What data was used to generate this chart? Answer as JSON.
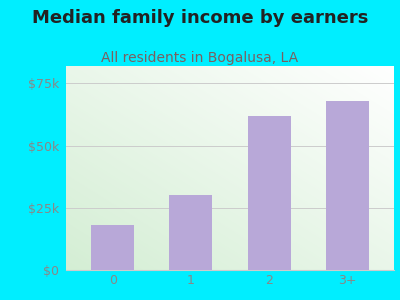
{
  "categories": [
    "0",
    "1",
    "2",
    "3+"
  ],
  "values": [
    18000,
    30000,
    62000,
    68000
  ],
  "bar_color": "#b8a8d8",
  "title": "Median family income by earners",
  "subtitle": "All residents in Bogalusa, LA",
  "title_color": "#222222",
  "subtitle_color": "#7a6060",
  "outer_bg_color": "#00eeff",
  "plot_bg_left": "#d8eeda",
  "plot_bg_right": "#f5fbf5",
  "plot_bg_top": "#ffffff",
  "yticks": [
    0,
    25000,
    50000,
    75000
  ],
  "ytick_labels": [
    "$0",
    "$25k",
    "$50k",
    "$75k"
  ],
  "ylim": [
    0,
    82000
  ],
  "title_fontsize": 13,
  "subtitle_fontsize": 10,
  "tick_color": "#888888",
  "grid_color": "#cccccc",
  "bar_width": 0.55
}
